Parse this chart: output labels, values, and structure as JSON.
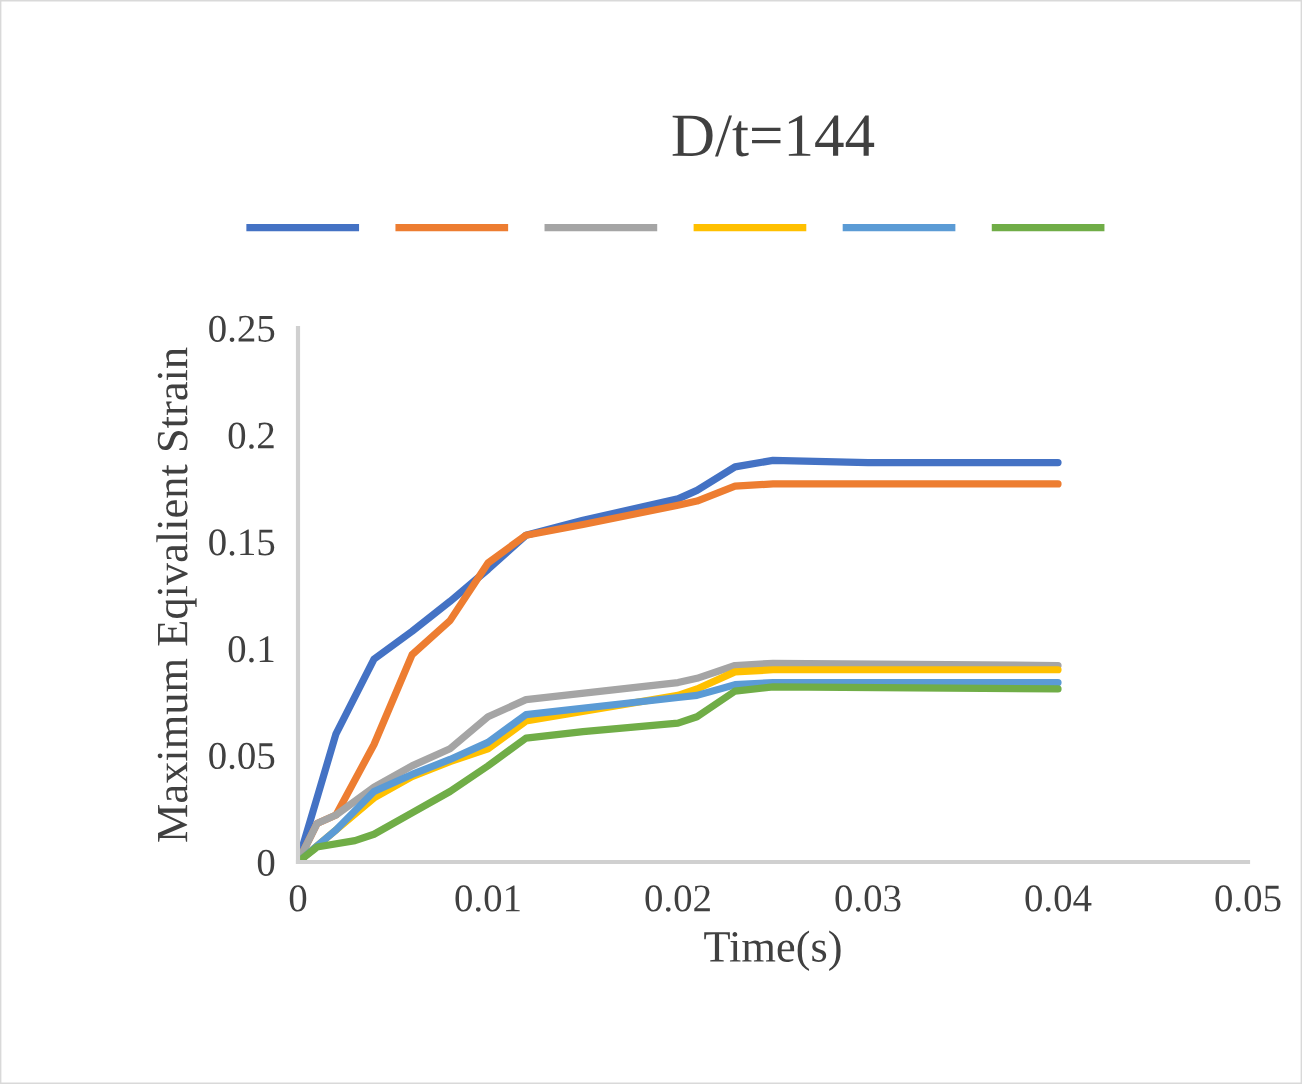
{
  "chart_data": {
    "type": "line",
    "title": "D/t=144",
    "xlabel": "Time(s)",
    "ylabel": "Maximum Eqivalient Strain",
    "xlim": [
      0,
      0.05
    ],
    "xticks": [
      0,
      0.01,
      0.02,
      0.03,
      0.04,
      0.05
    ],
    "ylim": [
      0,
      0.25
    ],
    "yticks": [
      0,
      0.05,
      0.1,
      0.15,
      0.2,
      0.25
    ],
    "grid": false,
    "marker": "none",
    "line_style": "solid",
    "series": [
      {
        "color": "#4472c4",
        "x": [
          0,
          0.001,
          0.002,
          0.004,
          0.006,
          0.008,
          0.01,
          0.012,
          0.015,
          0.02,
          0.021,
          0.023,
          0.025,
          0.03,
          0.04
        ],
        "values": [
          0,
          0.03,
          0.06,
          0.095,
          0.108,
          0.122,
          0.137,
          0.153,
          0.16,
          0.17,
          0.174,
          0.185,
          0.188,
          0.187,
          0.187
        ]
      },
      {
        "color": "#ed7d31",
        "x": [
          0,
          0.001,
          0.002,
          0.004,
          0.006,
          0.008,
          0.01,
          0.012,
          0.015,
          0.02,
          0.021,
          0.023,
          0.025,
          0.04
        ],
        "values": [
          0,
          0.018,
          0.022,
          0.055,
          0.097,
          0.113,
          0.14,
          0.153,
          0.158,
          0.167,
          0.169,
          0.176,
          0.177,
          0.177
        ]
      },
      {
        "color": "#a5a5a5",
        "x": [
          0,
          0.001,
          0.002,
          0.004,
          0.006,
          0.008,
          0.01,
          0.012,
          0.02,
          0.021,
          0.023,
          0.025,
          0.04
        ],
        "values": [
          0,
          0.018,
          0.022,
          0.035,
          0.045,
          0.053,
          0.068,
          0.076,
          0.084,
          0.086,
          0.092,
          0.093,
          0.092
        ]
      },
      {
        "color": "#ffc000",
        "x": [
          0,
          0.002,
          0.004,
          0.006,
          0.008,
          0.01,
          0.012,
          0.02,
          0.021,
          0.023,
          0.025,
          0.04
        ],
        "values": [
          0,
          0.015,
          0.03,
          0.04,
          0.047,
          0.053,
          0.066,
          0.078,
          0.081,
          0.089,
          0.09,
          0.09
        ]
      },
      {
        "color": "#5b9bd5",
        "x": [
          0,
          0.002,
          0.004,
          0.006,
          0.008,
          0.01,
          0.012,
          0.02,
          0.021,
          0.023,
          0.025,
          0.04
        ],
        "values": [
          0,
          0.015,
          0.033,
          0.041,
          0.048,
          0.056,
          0.069,
          0.077,
          0.078,
          0.083,
          0.084,
          0.084
        ]
      },
      {
        "color": "#70ad47",
        "x": [
          0,
          0.001,
          0.003,
          0.004,
          0.006,
          0.008,
          0.01,
          0.012,
          0.015,
          0.02,
          0.021,
          0.023,
          0.025,
          0.04
        ],
        "values": [
          0,
          0.007,
          0.01,
          0.013,
          0.023,
          0.033,
          0.045,
          0.058,
          0.061,
          0.065,
          0.068,
          0.08,
          0.082,
          0.081
        ]
      }
    ]
  }
}
